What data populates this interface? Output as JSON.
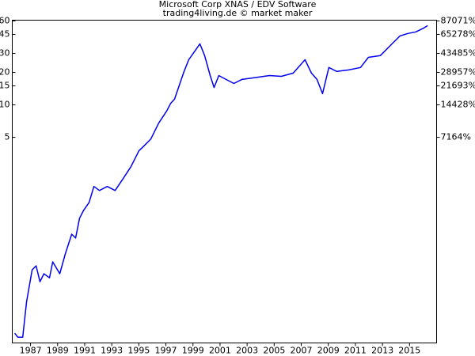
{
  "chart_data": {
    "type": "line",
    "title": "Microsoft Corp XNAS / EDV Software",
    "subtitle": "trading4living.de © market maker",
    "x": [
      1985.83,
      1986.06,
      1986.42,
      1986.71,
      1987.12,
      1987.41,
      1987.7,
      1987.99,
      1988.4,
      1988.64,
      1989.16,
      1989.57,
      1990.04,
      1990.33,
      1990.62,
      1990.92,
      1991.33,
      1991.68,
      1992.09,
      1992.67,
      1993.25,
      1993.84,
      1994.42,
      1995.01,
      1995.3,
      1995.89,
      1996.47,
      1997.05,
      1997.35,
      1997.64,
      1997.93,
      1998.34,
      1998.69,
      1999.1,
      1999.51,
      1999.86,
      2000.27,
      2000.56,
      2000.91,
      2001.44,
      2002.02,
      2002.61,
      2003.48,
      2004.65,
      2005.53,
      2006.41,
      2007.28,
      2007.75,
      2008.16,
      2008.57,
      2009.04,
      2009.62,
      2010.5,
      2011.38,
      2011.96,
      2012.84,
      2013.71,
      2014.3,
      2014.88,
      2015.47,
      2016.05,
      2016.34
    ],
    "series": [
      {
        "name": "Microsoft Corp",
        "color": "#0000ee",
        "values": [
          0.0763,
          0.0701,
          0.0701,
          0.15,
          0.2955,
          0.322,
          0.229,
          0.272,
          0.249,
          0.35,
          0.272,
          0.415,
          0.633,
          0.582,
          0.889,
          1.052,
          1.247,
          1.75,
          1.607,
          1.75,
          1.607,
          2.07,
          2.67,
          3.75,
          4.07,
          4.83,
          6.78,
          8.73,
          10.3,
          11.3,
          14.5,
          20.4,
          26.2,
          31.1,
          36.8,
          28.6,
          18.7,
          14.5,
          18.7,
          17.2,
          15.8,
          17.2,
          17.8,
          18.7,
          18.4,
          19.7,
          26.2,
          19.7,
          17.2,
          12.7,
          22.2,
          20.4,
          21.1,
          22.2,
          27.6,
          28.6,
          36.8,
          43.6,
          45.9,
          47.5,
          51.6,
          54.3
        ]
      }
    ],
    "xlim": [
      1985.65,
      2017.0
    ],
    "xticks": [
      1987,
      1989,
      1991,
      1993,
      1995,
      1997,
      1999,
      2001,
      2003,
      2005,
      2007,
      2009,
      2011,
      2013,
      2015
    ],
    "ylim": [
      0.062,
      61
    ],
    "yticks": [
      5,
      10,
      15,
      20,
      30,
      45,
      60
    ],
    "y_scale": "log",
    "y2lim": [
      -9.9,
      88524
    ],
    "y2ticks": [
      {
        "value": 7164,
        "label": "7164%"
      },
      {
        "value": 14428,
        "label": "14428%"
      },
      {
        "value": 21693,
        "label": "21693%"
      },
      {
        "value": 28957,
        "label": "28957%"
      },
      {
        "value": 43485,
        "label": "43485%"
      },
      {
        "value": 65278,
        "label": "65278%"
      },
      {
        "value": 87071,
        "label": "87071%"
      }
    ],
    "y2_scale": "log",
    "grid": false
  }
}
